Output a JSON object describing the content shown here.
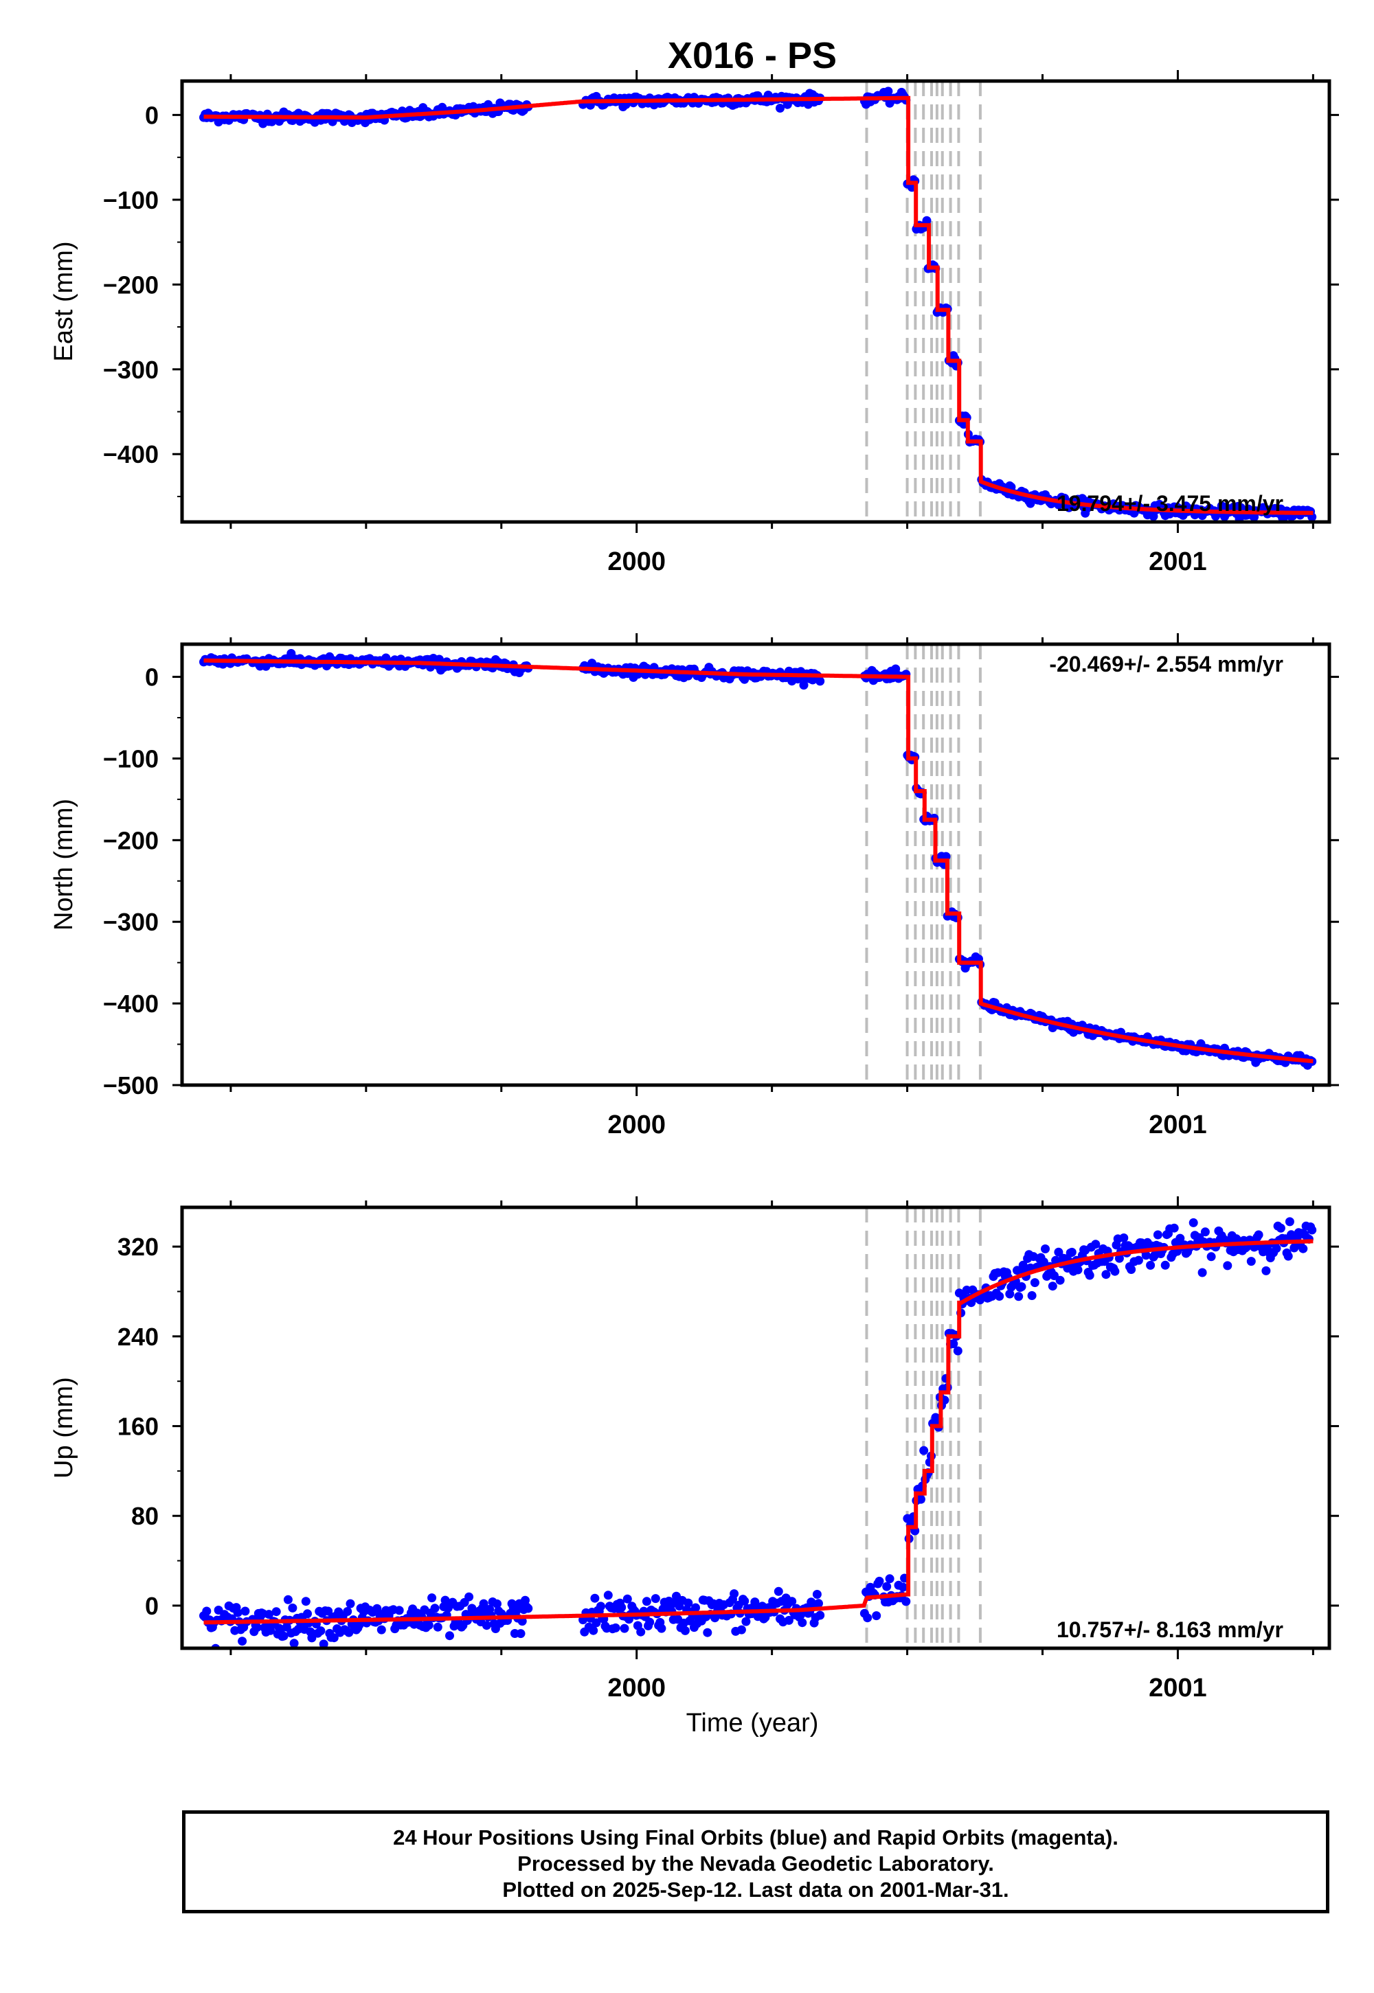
{
  "title": "X016 - PS",
  "xlabel": "Time (year)",
  "footer": {
    "line1": "24 Hour Positions Using Final Orbits (blue) and Rapid Orbits (magenta).",
    "line2": "Processed by the Nevada Geodetic Laboratory.",
    "line3": "Plotted on 2025-Sep-12. Last data on 2001-Mar-31."
  },
  "colors": {
    "data": "#0000ff",
    "model": "#ff0000",
    "event_lines": "#bdbdbd"
  },
  "chart_data": [
    {
      "type": "scatter",
      "component": "East",
      "ylabel": "East (mm)",
      "ylim": [
        -480,
        40
      ],
      "yticks": [
        0,
        -100,
        -200,
        -300,
        -400
      ],
      "ytick_labels": [
        "0",
        "−100",
        "−200",
        "−300",
        "−400"
      ],
      "xlim": [
        1999.16,
        2001.28
      ],
      "xticks": [
        2000,
        2001
      ],
      "xtick_labels": [
        "2000",
        "2001"
      ],
      "rate_label": "19.794+/- 3.475 mm/yr",
      "event_lines": [
        2000.425,
        2000.5,
        2000.515,
        2000.53,
        2000.545,
        2000.555,
        2000.565,
        2000.58,
        2000.595,
        2000.635
      ],
      "data_gaps": [
        [
          1999.28,
          1999.29
        ],
        [
          1999.8,
          1999.9
        ],
        [
          2000.34,
          2000.42
        ],
        [
          2000.45,
          2000.455
        ]
      ],
      "model": {
        "start": 1999.2,
        "end": 2001.25,
        "trend": [
          [
            1999.2,
            -2
          ],
          [
            1999.5,
            -3
          ],
          [
            1999.7,
            5
          ],
          [
            1999.9,
            16
          ],
          [
            2000.2,
            18
          ],
          [
            2000.5,
            20
          ]
        ],
        "steps": [
          {
            "t": 2000.5,
            "value": -80
          },
          {
            "t": 2000.515,
            "value": -130
          },
          {
            "t": 2000.538,
            "value": -180
          },
          {
            "t": 2000.555,
            "value": -230
          },
          {
            "t": 2000.575,
            "value": -290
          },
          {
            "t": 2000.595,
            "value": -360
          },
          {
            "t": 2000.61,
            "value": -385
          },
          {
            "t": 2000.635,
            "value": -432
          }
        ],
        "postseismic": {
          "start": 2000.635,
          "from": -432,
          "to": -470,
          "tau": 0.15
        }
      },
      "noise": 3
    },
    {
      "type": "scatter",
      "component": "North",
      "ylabel": "North (mm)",
      "ylim": [
        -500,
        40
      ],
      "yticks": [
        0,
        -100,
        -200,
        -300,
        -400,
        -500
      ],
      "ytick_labels": [
        "0",
        "−100",
        "−200",
        "−300",
        "−400",
        "−500"
      ],
      "xlim": [
        1999.16,
        2001.28
      ],
      "xticks": [
        2000,
        2001
      ],
      "xtick_labels": [
        "2000",
        "2001"
      ],
      "rate_label": "-20.469+/- 2.554 mm/yr",
      "event_lines": [
        2000.425,
        2000.5,
        2000.515,
        2000.53,
        2000.545,
        2000.555,
        2000.565,
        2000.58,
        2000.595,
        2000.635
      ],
      "data_gaps": [
        [
          1999.28,
          1999.29
        ],
        [
          1999.8,
          1999.9
        ],
        [
          2000.34,
          2000.42
        ],
        [
          2000.45,
          2000.455
        ]
      ],
      "model": {
        "start": 1999.2,
        "end": 2001.25,
        "trend": [
          [
            1999.2,
            20
          ],
          [
            1999.6,
            17
          ],
          [
            1999.9,
            10
          ],
          [
            2000.2,
            3
          ],
          [
            2000.5,
            0
          ]
        ],
        "steps": [
          {
            "t": 2000.5,
            "value": -100
          },
          {
            "t": 2000.515,
            "value": -140
          },
          {
            "t": 2000.53,
            "value": -175
          },
          {
            "t": 2000.55,
            "value": -225
          },
          {
            "t": 2000.572,
            "value": -290
          },
          {
            "t": 2000.595,
            "value": -350
          },
          {
            "t": 2000.635,
            "value": -400
          }
        ],
        "postseismic": {
          "start": 2000.635,
          "from": -400,
          "to": -500,
          "tau": 0.5
        }
      },
      "noise": 3
    },
    {
      "type": "scatter",
      "component": "Up",
      "ylabel": "Up (mm)",
      "ylim": [
        -38,
        355
      ],
      "yticks": [
        0,
        80,
        160,
        240,
        320
      ],
      "ytick_labels": [
        "0",
        "80",
        "160",
        "240",
        "320"
      ],
      "xlim": [
        1999.16,
        2001.28
      ],
      "xticks": [
        2000,
        2001
      ],
      "xtick_labels": [
        "2000",
        "2001"
      ],
      "rate_label": "10.757+/- 8.163 mm/yr",
      "event_lines": [
        2000.425,
        2000.5,
        2000.515,
        2000.53,
        2000.545,
        2000.555,
        2000.565,
        2000.58,
        2000.595,
        2000.635
      ],
      "data_gaps": [
        [
          1999.28,
          1999.29
        ],
        [
          1999.8,
          1999.9
        ],
        [
          2000.34,
          2000.42
        ],
        [
          2000.45,
          2000.455
        ]
      ],
      "model": {
        "start": 1999.2,
        "end": 2001.25,
        "trend": [
          [
            1999.2,
            -15
          ],
          [
            1999.6,
            -12
          ],
          [
            2000.0,
            -8
          ],
          [
            2000.3,
            -4
          ],
          [
            2000.42,
            0
          ],
          [
            2000.425,
            7
          ],
          [
            2000.5,
            10
          ]
        ],
        "steps": [
          {
            "t": 2000.5,
            "value": 70
          },
          {
            "t": 2000.515,
            "value": 100
          },
          {
            "t": 2000.53,
            "value": 120
          },
          {
            "t": 2000.545,
            "value": 160
          },
          {
            "t": 2000.56,
            "value": 190
          },
          {
            "t": 2000.575,
            "value": 240
          },
          {
            "t": 2000.595,
            "value": 270
          }
        ],
        "postseismic": {
          "start": 2000.6,
          "from": 270,
          "to": 327,
          "tau": 0.2
        }
      },
      "noise": 8
    }
  ]
}
